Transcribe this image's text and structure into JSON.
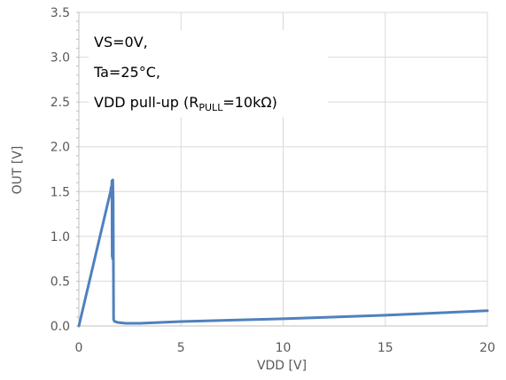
{
  "chart_data": {
    "type": "line",
    "title": "",
    "xlabel": "VDD [V]",
    "ylabel": "OUT [V]",
    "xlim": [
      0,
      20
    ],
    "ylim": [
      0,
      3.5
    ],
    "x_ticks": [
      0,
      5,
      10,
      15,
      20
    ],
    "y_ticks": [
      0.0,
      0.5,
      1.0,
      1.5,
      2.0,
      2.5,
      3.0,
      3.5
    ],
    "x_tick_labels": [
      "0",
      "5",
      "10",
      "15",
      "20"
    ],
    "y_tick_labels": [
      "0.0",
      "0.5",
      "1.0",
      "1.5",
      "2.0",
      "2.5",
      "3.0",
      "3.5"
    ],
    "grid": {
      "horizontal": true,
      "vertical": true
    },
    "legend": "none",
    "annotation": {
      "lines": [
        "VS=0V,",
        "Ta=25°C,"
      ],
      "pullup_prefix": "VDD pull-up (R",
      "pullup_subscript": "PULL",
      "pullup_suffix": "=10kΩ)"
    },
    "series": [
      {
        "color": "#4f81bd",
        "x": [
          0,
          1.55,
          1.58,
          1.6,
          1.62,
          1.63,
          1.64,
          1.65,
          1.66,
          1.68,
          1.7,
          1.75,
          1.9,
          2.3,
          3.0,
          5,
          10,
          15,
          20
        ],
        "y": [
          0,
          1.5,
          1.55,
          1.52,
          1.62,
          0.78,
          1.6,
          0.75,
          1.63,
          1.4,
          0.07,
          0.05,
          0.04,
          0.03,
          0.03,
          0.05,
          0.08,
          0.12,
          0.17
        ]
      }
    ]
  }
}
